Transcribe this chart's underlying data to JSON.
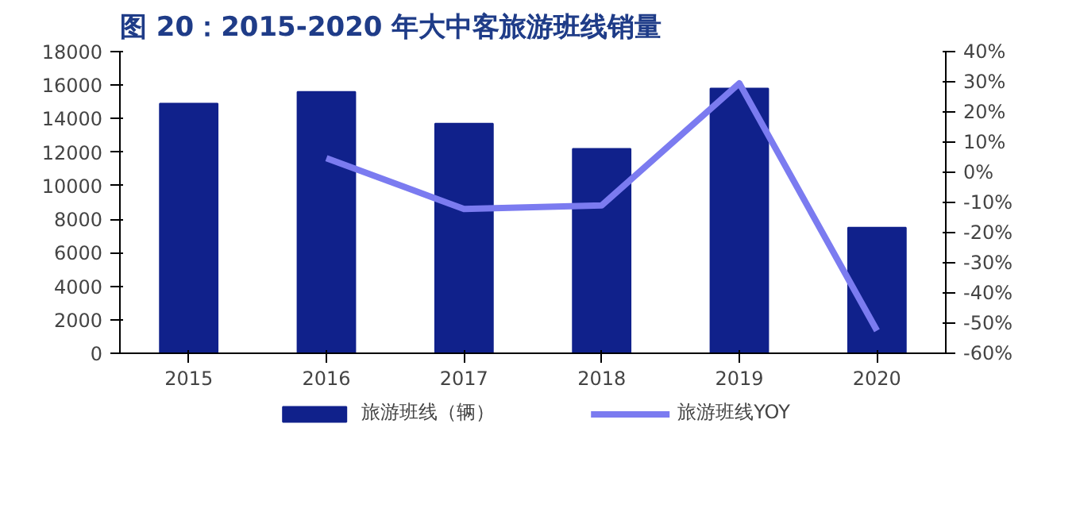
{
  "chart_data": {
    "type": "bar",
    "title": "图 20：2015-2020 年大中客旅游班线销量",
    "categories": [
      "2015",
      "2016",
      "2017",
      "2018",
      "2019",
      "2020"
    ],
    "series": [
      {
        "name": "旅游班线（辆）",
        "color": "#10218b",
        "values": [
          14900,
          15600,
          13700,
          12200,
          15800,
          7500
        ]
      },
      {
        "name": "旅游班线YOY",
        "type": "line",
        "axis": "y2",
        "color": "#7b7bf0",
        "values": [
          null,
          4.7,
          -12.2,
          -11.0,
          29.5,
          -52.5
        ]
      }
    ],
    "ylim": [
      0,
      18000
    ],
    "yticks": [
      0,
      2000,
      4000,
      6000,
      8000,
      10000,
      12000,
      14000,
      16000,
      18000
    ],
    "y2lim": [
      -60,
      40
    ],
    "y2ticks": [
      {
        "value": -60,
        "label": "-60%"
      },
      {
        "value": -50,
        "label": "-50%"
      },
      {
        "value": -40,
        "label": "-40%"
      },
      {
        "value": -30,
        "label": "-30%"
      },
      {
        "value": -20,
        "label": "-20%"
      },
      {
        "value": -10,
        "label": "-10%"
      },
      {
        "value": 0,
        "label": "0%"
      },
      {
        "value": 10,
        "label": "10%"
      },
      {
        "value": 20,
        "label": "20%"
      },
      {
        "value": 30,
        "label": "30%"
      },
      {
        "value": 40,
        "label": "40%"
      }
    ],
    "grid": false,
    "legend": "bottom"
  }
}
